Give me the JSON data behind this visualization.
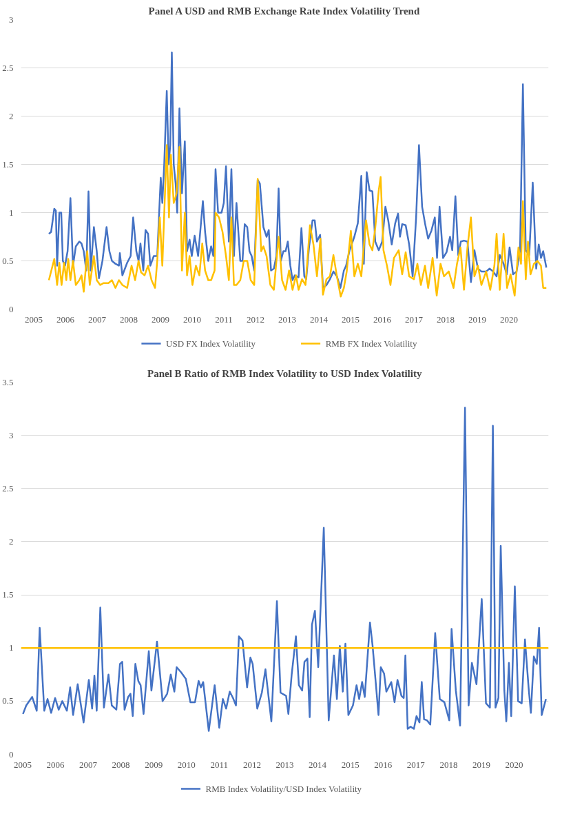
{
  "chart_data": [
    {
      "type": "line",
      "title": "Panel A USD and RMB Exchange Rate Index Volatility Trend",
      "xlim": [
        2004.6,
        2021.25
      ],
      "ylim": [
        0,
        3
      ],
      "xticks": [
        2005,
        2006,
        2007,
        2008,
        2009,
        2010,
        2011,
        2012,
        2013,
        2014,
        2015,
        2016,
        2017,
        2018,
        2019,
        2020
      ],
      "yticks": [
        0,
        0.5,
        1,
        1.5,
        2,
        2.5,
        3
      ],
      "grid": "y",
      "legend": "bottom",
      "series": [
        {
          "name": "USD FX Index Volatility",
          "color": "#4472c4",
          "x": [
            2005.48,
            2005.55,
            2005.65,
            2005.7,
            2005.74,
            2005.81,
            2005.87,
            2005.92,
            2005.99,
            2006.07,
            2006.16,
            2006.24,
            2006.33,
            2006.44,
            2006.51,
            2006.58,
            2006.66,
            2006.73,
            2006.8,
            2006.9,
            2006.99,
            2007.06,
            2007.17,
            2007.3,
            2007.39,
            2007.47,
            2007.58,
            2007.69,
            2007.72,
            2007.8,
            2007.95,
            2008.06,
            2008.14,
            2008.24,
            2008.31,
            2008.37,
            2008.46,
            2008.53,
            2008.61,
            2008.68,
            2008.79,
            2008.9,
            2008.96,
            2009.01,
            2009.06,
            2009.12,
            2009.2,
            2009.26,
            2009.31,
            2009.36,
            2009.42,
            2009.48,
            2009.53,
            2009.6,
            2009.68,
            2009.77,
            2009.84,
            2009.92,
            2009.99,
            2010.08,
            2010.19,
            2010.34,
            2010.41,
            2010.51,
            2010.6,
            2010.67,
            2010.74,
            2010.82,
            2010.93,
            2011.0,
            2011.07,
            2011.16,
            2011.24,
            2011.32,
            2011.4,
            2011.52,
            2011.59,
            2011.66,
            2011.74,
            2011.81,
            2011.88,
            2011.96,
            2012.07,
            2012.14,
            2012.25,
            2012.35,
            2012.42,
            2012.49,
            2012.58,
            2012.66,
            2012.73,
            2012.8,
            2012.88,
            2012.95,
            2013.02,
            2013.1,
            2013.17,
            2013.24,
            2013.36,
            2013.45,
            2013.54,
            2013.6,
            2013.69,
            2013.8,
            2013.87,
            2013.94,
            2014.04,
            2014.13,
            2014.24,
            2014.35,
            2014.46,
            2014.57,
            2014.68,
            2014.79,
            2014.86,
            2014.97,
            2015.12,
            2015.23,
            2015.34,
            2015.42,
            2015.51,
            2015.6,
            2015.69,
            2015.78,
            2015.89,
            2016.0,
            2016.1,
            2016.19,
            2016.3,
            2016.41,
            2016.5,
            2016.56,
            2016.63,
            2016.74,
            2016.85,
            2016.96,
            2017.07,
            2017.16,
            2017.26,
            2017.35,
            2017.45,
            2017.55,
            2017.66,
            2017.73,
            2017.81,
            2017.92,
            2018.03,
            2018.14,
            2018.21,
            2018.31,
            2018.4,
            2018.48,
            2018.58,
            2018.69,
            2018.8,
            2018.91,
            2019.02,
            2019.13,
            2019.28,
            2019.39,
            2019.5,
            2019.61,
            2019.71,
            2019.83,
            2019.93,
            2020.02,
            2020.13,
            2020.24,
            2020.35,
            2020.44,
            2020.53,
            2020.64,
            2020.75,
            2020.86,
            2020.94,
            2021.01,
            2021.08,
            2021.18
          ],
          "values": [
            0.78,
            0.8,
            1.04,
            1.02,
            0.45,
            1.0,
            1.0,
            0.5,
            0.45,
            0.6,
            1.15,
            0.45,
            0.65,
            0.7,
            0.68,
            0.6,
            0.4,
            1.22,
            0.4,
            0.85,
            0.6,
            0.32,
            0.5,
            0.85,
            0.6,
            0.5,
            0.47,
            0.45,
            0.58,
            0.35,
            0.48,
            0.55,
            0.95,
            0.6,
            0.5,
            0.68,
            0.4,
            0.82,
            0.78,
            0.45,
            0.55,
            0.55,
            1.0,
            1.36,
            1.1,
            1.5,
            2.26,
            1.5,
            1.7,
            2.66,
            1.5,
            1.3,
            1.0,
            2.08,
            1.2,
            1.74,
            0.6,
            0.72,
            0.55,
            0.76,
            0.55,
            1.12,
            0.8,
            0.5,
            0.65,
            0.55,
            1.45,
            1.0,
            1.0,
            1.1,
            1.48,
            0.7,
            1.45,
            0.55,
            1.1,
            0.5,
            0.5,
            0.88,
            0.85,
            0.6,
            0.55,
            0.4,
            1.34,
            1.3,
            0.85,
            0.75,
            0.82,
            0.4,
            0.42,
            0.55,
            1.25,
            0.5,
            0.6,
            0.6,
            0.7,
            0.45,
            0.3,
            0.35,
            0.33,
            0.84,
            0.34,
            0.31,
            0.64,
            0.92,
            0.92,
            0.7,
            0.77,
            0.22,
            0.25,
            0.31,
            0.39,
            0.34,
            0.22,
            0.4,
            0.45,
            0.61,
            0.75,
            0.89,
            1.38,
            0.47,
            1.42,
            1.23,
            1.22,
            0.7,
            0.61,
            0.7,
            1.06,
            0.92,
            0.67,
            0.89,
            0.99,
            0.75,
            0.88,
            0.87,
            0.67,
            0.34,
            0.95,
            1.7,
            1.06,
            0.89,
            0.73,
            0.81,
            0.95,
            0.53,
            1.06,
            0.53,
            0.59,
            0.75,
            0.61,
            1.17,
            0.56,
            0.7,
            0.71,
            0.7,
            0.28,
            0.61,
            0.42,
            0.39,
            0.39,
            0.42,
            0.39,
            0.34,
            0.56,
            0.47,
            0.36,
            0.64,
            0.36,
            0.39,
            0.61,
            2.33,
            0.61,
            0.56,
            1.31,
            0.42,
            0.67,
            0.53,
            0.6,
            0.43
          ]
        },
        {
          "name": "RMB FX Index Volatility",
          "color": "#ffc000",
          "x": [
            2005.48,
            2005.65,
            2005.74,
            2005.81,
            2005.88,
            2005.96,
            2006.03,
            2006.09,
            2006.16,
            2006.24,
            2006.33,
            2006.44,
            2006.51,
            2006.58,
            2006.69,
            2006.77,
            2006.9,
            2006.99,
            2007.1,
            2007.21,
            2007.36,
            2007.47,
            2007.58,
            2007.69,
            2007.8,
            2007.95,
            2008.09,
            2008.2,
            2008.31,
            2008.39,
            2008.5,
            2008.61,
            2008.72,
            2008.83,
            2008.9,
            2008.98,
            2009.06,
            2009.2,
            2009.27,
            2009.33,
            2009.42,
            2009.51,
            2009.6,
            2009.68,
            2009.77,
            2009.84,
            2009.92,
            2010.01,
            2010.12,
            2010.23,
            2010.32,
            2010.41,
            2010.51,
            2010.6,
            2010.71,
            2010.74,
            2010.85,
            2010.96,
            2011.07,
            2011.16,
            2011.24,
            2011.32,
            2011.4,
            2011.52,
            2011.63,
            2011.74,
            2011.85,
            2011.96,
            2012.07,
            2012.18,
            2012.25,
            2012.35,
            2012.47,
            2012.58,
            2012.73,
            2012.84,
            2012.95,
            2013.06,
            2013.17,
            2013.28,
            2013.36,
            2013.47,
            2013.58,
            2013.72,
            2013.83,
            2013.94,
            2014.05,
            2014.13,
            2014.24,
            2014.35,
            2014.46,
            2014.57,
            2014.69,
            2014.79,
            2014.88,
            2015.01,
            2015.12,
            2015.23,
            2015.34,
            2015.49,
            2015.6,
            2015.69,
            2015.78,
            2015.89,
            2015.95,
            2016.04,
            2016.15,
            2016.26,
            2016.37,
            2016.52,
            2016.63,
            2016.74,
            2016.85,
            2017.0,
            2017.11,
            2017.22,
            2017.35,
            2017.45,
            2017.59,
            2017.72,
            2017.84,
            2017.95,
            2018.1,
            2018.25,
            2018.36,
            2018.47,
            2018.58,
            2018.69,
            2018.8,
            2018.91,
            2019.02,
            2019.13,
            2019.28,
            2019.41,
            2019.54,
            2019.61,
            2019.71,
            2019.83,
            2019.94,
            2020.05,
            2020.18,
            2020.3,
            2020.38,
            2020.44,
            2020.53,
            2020.6,
            2020.68,
            2020.79,
            2020.9,
            2021.01,
            2021.08,
            2021.18
          ],
          "values": [
            0.3,
            0.52,
            0.25,
            0.48,
            0.25,
            0.48,
            0.3,
            0.52,
            0.3,
            0.5,
            0.25,
            0.3,
            0.35,
            0.18,
            0.6,
            0.25,
            0.55,
            0.3,
            0.25,
            0.27,
            0.27,
            0.3,
            0.22,
            0.3,
            0.25,
            0.22,
            0.45,
            0.3,
            0.5,
            0.38,
            0.35,
            0.45,
            0.3,
            0.22,
            0.5,
            0.95,
            0.45,
            1.7,
            0.95,
            1.6,
            1.1,
            1.2,
            1.68,
            0.4,
            1.0,
            0.35,
            0.55,
            0.25,
            0.45,
            0.35,
            0.68,
            0.4,
            0.3,
            0.3,
            0.4,
            1.0,
            0.95,
            0.8,
            0.55,
            0.3,
            0.95,
            0.25,
            0.25,
            0.3,
            0.5,
            0.5,
            0.3,
            0.25,
            1.35,
            0.6,
            0.65,
            0.55,
            0.25,
            0.2,
            0.75,
            0.3,
            0.2,
            0.4,
            0.2,
            0.35,
            0.2,
            0.31,
            0.25,
            0.87,
            0.67,
            0.34,
            0.73,
            0.15,
            0.31,
            0.34,
            0.56,
            0.34,
            0.13,
            0.22,
            0.39,
            0.81,
            0.34,
            0.47,
            0.34,
            0.92,
            0.67,
            0.61,
            0.84,
            1.23,
            1.37,
            0.61,
            0.45,
            0.25,
            0.53,
            0.61,
            0.36,
            0.59,
            0.34,
            0.31,
            0.47,
            0.25,
            0.45,
            0.22,
            0.53,
            0.14,
            0.47,
            0.34,
            0.39,
            0.22,
            0.47,
            0.64,
            0.2,
            0.64,
            0.95,
            0.34,
            0.45,
            0.25,
            0.39,
            0.2,
            0.45,
            0.78,
            0.2,
            0.78,
            0.22,
            0.36,
            0.14,
            0.64,
            0.47,
            1.12,
            0.31,
            0.7,
            0.36,
            0.47,
            0.5,
            0.45,
            0.22,
            0.22
          ]
        }
      ]
    },
    {
      "type": "line",
      "title": "Panel B Ratio of RMB Index Volatility to USD Index Volatility",
      "xlim": [
        2004.95,
        2021.05
      ],
      "ylim": [
        0,
        3.5
      ],
      "xticks": [
        2005,
        2006,
        2007,
        2008,
        2009,
        2010,
        2011,
        2012,
        2013,
        2014,
        2015,
        2016,
        2017,
        2018,
        2019,
        2020
      ],
      "yticks": [
        0,
        0.5,
        1,
        1.5,
        2,
        2.5,
        3,
        3.5
      ],
      "grid": "y",
      "legend": "bottom",
      "ref_lines": [
        {
          "axis": "y",
          "value": 1,
          "color": "#ffc000"
        }
      ],
      "series": [
        {
          "name": "RMB Index Volatility/USD Index Volatility",
          "color": "#4472c4",
          "x": [
            2005.01,
            2005.11,
            2005.29,
            2005.43,
            2005.52,
            2005.66,
            2005.76,
            2005.87,
            2005.99,
            2006.1,
            2006.21,
            2006.35,
            2006.45,
            2006.54,
            2006.68,
            2006.86,
            2007.02,
            2007.12,
            2007.19,
            2007.26,
            2007.37,
            2007.48,
            2007.62,
            2007.72,
            2007.86,
            2007.97,
            2008.04,
            2008.11,
            2008.22,
            2008.29,
            2008.36,
            2008.44,
            2008.53,
            2008.6,
            2008.69,
            2008.85,
            2008.93,
            2009.1,
            2009.27,
            2009.41,
            2009.52,
            2009.63,
            2009.7,
            2009.84,
            2009.98,
            2010.12,
            2010.26,
            2010.37,
            2010.44,
            2010.51,
            2010.68,
            2010.86,
            2011.0,
            2011.11,
            2011.21,
            2011.32,
            2011.42,
            2011.51,
            2011.6,
            2011.71,
            2011.85,
            2011.95,
            2012.02,
            2012.16,
            2012.3,
            2012.41,
            2012.59,
            2012.76,
            2012.87,
            2013.04,
            2013.11,
            2013.21,
            2013.34,
            2013.43,
            2013.53,
            2013.6,
            2013.69,
            2013.76,
            2013.83,
            2013.92,
            2014.02,
            2014.19,
            2014.34,
            2014.5,
            2014.59,
            2014.68,
            2014.77,
            2014.85,
            2014.94,
            2015.08,
            2015.19,
            2015.27,
            2015.36,
            2015.44,
            2015.6,
            2015.68,
            2015.86,
            2015.93,
            2016.03,
            2016.1,
            2016.25,
            2016.35,
            2016.44,
            2016.56,
            2016.63,
            2016.68,
            2016.75,
            2016.84,
            2016.94,
            2017.02,
            2017.11,
            2017.18,
            2017.25,
            2017.34,
            2017.44,
            2017.59,
            2017.73,
            2017.87,
            2018.02,
            2018.09,
            2018.22,
            2018.35,
            2018.5,
            2018.61,
            2018.71,
            2018.85,
            2019.01,
            2019.14,
            2019.26,
            2019.35,
            2019.43,
            2019.52,
            2019.59,
            2019.7,
            2019.76,
            2019.84,
            2019.91,
            2020.02,
            2020.12,
            2020.23,
            2020.33,
            2020.44,
            2020.51,
            2020.6,
            2020.69,
            2020.76,
            2020.84,
            2020.97
          ],
          "values": [
            0.38,
            0.46,
            0.54,
            0.41,
            1.19,
            0.41,
            0.52,
            0.39,
            0.53,
            0.42,
            0.5,
            0.41,
            0.63,
            0.37,
            0.66,
            0.3,
            0.7,
            0.43,
            0.74,
            0.41,
            1.38,
            0.44,
            0.75,
            0.46,
            0.42,
            0.85,
            0.87,
            0.42,
            0.54,
            0.57,
            0.36,
            0.85,
            0.69,
            0.65,
            0.38,
            0.97,
            0.6,
            1.06,
            0.5,
            0.57,
            0.75,
            0.59,
            0.82,
            0.77,
            0.71,
            0.49,
            0.49,
            0.69,
            0.63,
            0.68,
            0.22,
            0.65,
            0.25,
            0.52,
            0.43,
            0.59,
            0.53,
            0.46,
            1.11,
            1.07,
            0.63,
            0.91,
            0.85,
            0.43,
            0.58,
            0.8,
            0.31,
            1.44,
            0.58,
            0.55,
            0.38,
            0.75,
            1.11,
            0.65,
            0.6,
            0.87,
            0.9,
            0.35,
            1.22,
            1.35,
            0.82,
            2.13,
            0.32,
            0.93,
            0.52,
            1.02,
            0.59,
            1.04,
            0.37,
            0.46,
            0.65,
            0.52,
            0.68,
            0.54,
            1.24,
            1.02,
            0.37,
            0.82,
            0.76,
            0.59,
            0.68,
            0.49,
            0.7,
            0.55,
            0.53,
            0.93,
            0.24,
            0.26,
            0.24,
            0.36,
            0.3,
            0.68,
            0.33,
            0.32,
            0.28,
            1.14,
            0.52,
            0.49,
            0.32,
            1.18,
            0.6,
            0.27,
            3.26,
            0.46,
            0.86,
            0.66,
            1.46,
            0.48,
            0.44,
            3.09,
            0.44,
            0.53,
            1.96,
            0.6,
            0.31,
            0.86,
            0.36,
            1.58,
            0.5,
            0.48,
            1.08,
            0.63,
            0.39,
            0.92,
            0.85,
            1.19,
            0.37,
            0.52
          ]
        }
      ]
    }
  ]
}
